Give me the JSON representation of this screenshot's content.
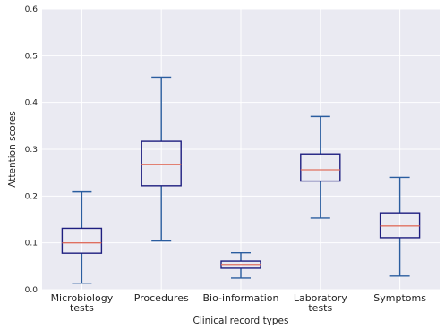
{
  "chart_data": {
    "type": "boxplot",
    "xlabel": "Clinical record types",
    "ylabel": "Attention scores",
    "ylim": [
      0.0,
      0.6
    ],
    "yticks": [
      "0.0",
      "0.1",
      "0.2",
      "0.3",
      "0.4",
      "0.5",
      "0.6"
    ],
    "grid": true,
    "categories": [
      {
        "lines": [
          "Microbiology",
          "tests"
        ],
        "whisker_low": 0.014,
        "q1": 0.078,
        "median": 0.1,
        "q3": 0.131,
        "whisker_high": 0.209
      },
      {
        "lines": [
          "Procedures"
        ],
        "whisker_low": 0.104,
        "q1": 0.222,
        "median": 0.268,
        "q3": 0.317,
        "whisker_high": 0.454
      },
      {
        "lines": [
          "Bio-information"
        ],
        "whisker_low": 0.025,
        "q1": 0.046,
        "median": 0.054,
        "q3": 0.061,
        "whisker_high": 0.079
      },
      {
        "lines": [
          "Laboratory",
          "tests"
        ],
        "whisker_low": 0.153,
        "q1": 0.232,
        "median": 0.256,
        "q3": 0.29,
        "whisker_high": 0.37
      },
      {
        "lines": [
          "Symptoms"
        ],
        "whisker_low": 0.029,
        "q1": 0.111,
        "median": 0.136,
        "q3": 0.164,
        "whisker_high": 0.24
      }
    ],
    "colors": {
      "background": "#eaeaf2",
      "grid": "#ffffff",
      "box": "#1f1f80",
      "whisker": "#2a5d9f",
      "median": "#e07060"
    }
  }
}
